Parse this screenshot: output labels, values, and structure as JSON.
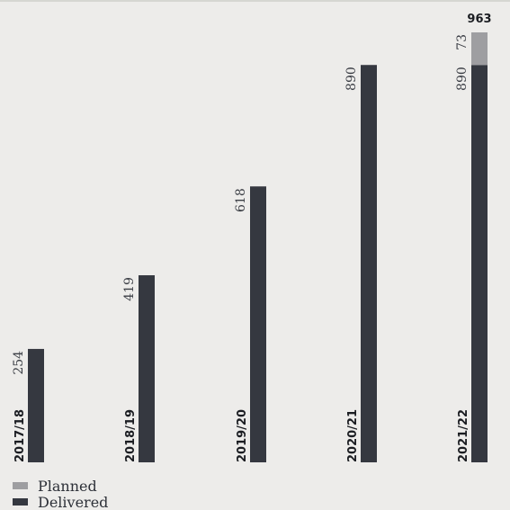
{
  "chart_data": {
    "type": "bar",
    "stacked": true,
    "categories": [
      "2017/18",
      "2018/19",
      "2019/20",
      "2020/21",
      "2021/22"
    ],
    "series": [
      {
        "name": "Delivered",
        "values": [
          254,
          419,
          618,
          890,
          890
        ],
        "color": "#353840"
      },
      {
        "name": "Planned",
        "values": [
          0,
          0,
          0,
          0,
          73
        ],
        "color": "#9e9ea1"
      }
    ],
    "totals": [
      {
        "category": "2021/22",
        "value": "963"
      }
    ],
    "ylim": [
      0,
      963
    ],
    "grid": false,
    "legend": {
      "placement": "bottom-left",
      "items": [
        "Planned",
        "Delivered"
      ]
    }
  }
}
